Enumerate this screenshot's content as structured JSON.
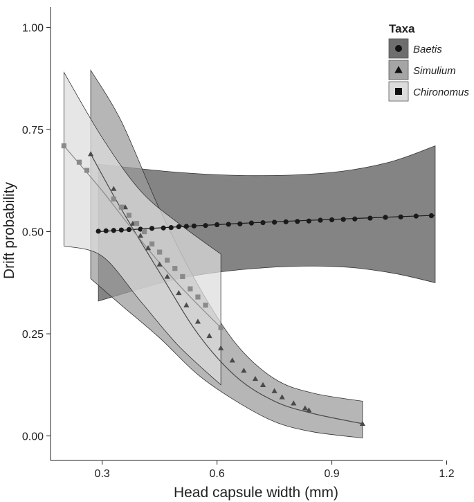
{
  "chart_data": {
    "type": "line",
    "title": "",
    "xlabel": "Head capsule width (mm)",
    "ylabel": "Drift probability",
    "xlim": [
      0.165,
      1.19
    ],
    "ylim": [
      -0.06,
      1.05
    ],
    "x_ticks": [
      0.3,
      0.6,
      0.9,
      1.2
    ],
    "x_tick_labels": [
      "0.3",
      "0.6",
      "0.9",
      "1.2"
    ],
    "y_ticks": [
      0.0,
      0.25,
      0.5,
      0.75,
      1.0
    ],
    "y_tick_labels": [
      "0.00",
      "0.25",
      "0.50",
      "0.75",
      "1.00"
    ],
    "grid": false,
    "legend": {
      "title": "Taxa",
      "position": "top-right",
      "entries": [
        {
          "label": "Baetis",
          "marker": "circle",
          "fill": "#6e6e6e"
        },
        {
          "label": "Simulium",
          "marker": "triangle",
          "fill": "#a5a5a5"
        },
        {
          "label": "Chironomus",
          "marker": "square",
          "fill": "#dcdcdc"
        }
      ]
    },
    "series": [
      {
        "name": "Baetis",
        "marker": "circle",
        "color": "#1a1a1a",
        "band_color": "#555555",
        "fit": {
          "x": [
            0.29,
            0.5,
            0.7,
            0.9,
            1.17
          ],
          "y": [
            0.5,
            0.512,
            0.522,
            0.53,
            0.54
          ]
        },
        "band": {
          "x": [
            0.29,
            0.5,
            0.7,
            0.9,
            1.05,
            1.17
          ],
          "upper": [
            0.665,
            0.645,
            0.637,
            0.645,
            0.67,
            0.71
          ],
          "lower": [
            0.33,
            0.385,
            0.41,
            0.415,
            0.4,
            0.375
          ]
        },
        "points": {
          "x": [
            0.29,
            0.31,
            0.33,
            0.35,
            0.37,
            0.4,
            0.43,
            0.46,
            0.48,
            0.5,
            0.52,
            0.54,
            0.57,
            0.6,
            0.63,
            0.66,
            0.69,
            0.72,
            0.75,
            0.78,
            0.81,
            0.84,
            0.87,
            0.9,
            0.93,
            0.96,
            1.0,
            1.04,
            1.08,
            1.12,
            1.16
          ],
          "y": [
            0.501,
            0.502,
            0.503,
            0.504,
            0.505,
            0.506,
            0.508,
            0.509,
            0.51,
            0.512,
            0.513,
            0.514,
            0.515,
            0.517,
            0.518,
            0.519,
            0.521,
            0.522,
            0.523,
            0.524,
            0.525,
            0.526,
            0.528,
            0.529,
            0.53,
            0.531,
            0.533,
            0.535,
            0.536,
            0.538,
            0.539
          ]
        }
      },
      {
        "name": "Simulium",
        "marker": "triangle",
        "color": "#4a4a4a",
        "band_color": "#9a9a9a",
        "fit": {
          "x": [
            0.27,
            0.35,
            0.45,
            0.55,
            0.65,
            0.75,
            0.85,
            0.98
          ],
          "y": [
            0.69,
            0.555,
            0.4,
            0.25,
            0.145,
            0.085,
            0.055,
            0.03
          ]
        },
        "band": {
          "x": [
            0.27,
            0.35,
            0.45,
            0.55,
            0.65,
            0.75,
            0.85,
            0.98
          ],
          "upper": [
            0.895,
            0.77,
            0.555,
            0.37,
            0.225,
            0.14,
            0.105,
            0.085
          ],
          "lower": [
            0.385,
            0.32,
            0.24,
            0.15,
            0.085,
            0.035,
            0.01,
            -0.005
          ]
        },
        "points": {
          "x": [
            0.27,
            0.33,
            0.36,
            0.38,
            0.4,
            0.42,
            0.45,
            0.47,
            0.5,
            0.52,
            0.55,
            0.58,
            0.61,
            0.64,
            0.67,
            0.7,
            0.72,
            0.75,
            0.77,
            0.8,
            0.83,
            0.84,
            0.98
          ],
          "y": [
            0.69,
            0.605,
            0.56,
            0.52,
            0.49,
            0.46,
            0.42,
            0.39,
            0.35,
            0.32,
            0.28,
            0.245,
            0.215,
            0.185,
            0.16,
            0.14,
            0.125,
            0.11,
            0.095,
            0.08,
            0.068,
            0.063,
            0.03
          ]
        }
      },
      {
        "name": "Chironomus",
        "marker": "square",
        "color": "#8a8a8a",
        "band_color": "#dddddd",
        "fit": {
          "x": [
            0.2,
            0.3,
            0.4,
            0.5,
            0.61
          ],
          "y": [
            0.71,
            0.6,
            0.48,
            0.37,
            0.265
          ]
        },
        "band": {
          "x": [
            0.2,
            0.3,
            0.4,
            0.5,
            0.61
          ],
          "upper": [
            0.89,
            0.73,
            0.6,
            0.52,
            0.445
          ],
          "lower": [
            0.465,
            0.44,
            0.33,
            0.22,
            0.125
          ]
        },
        "points": {
          "x": [
            0.2,
            0.24,
            0.26,
            0.33,
            0.35,
            0.37,
            0.39,
            0.41,
            0.43,
            0.45,
            0.47,
            0.49,
            0.51,
            0.53,
            0.55,
            0.57,
            0.61
          ],
          "y": [
            0.71,
            0.67,
            0.65,
            0.58,
            0.56,
            0.54,
            0.52,
            0.5,
            0.47,
            0.45,
            0.43,
            0.41,
            0.39,
            0.36,
            0.34,
            0.32,
            0.265
          ]
        }
      }
    ]
  }
}
